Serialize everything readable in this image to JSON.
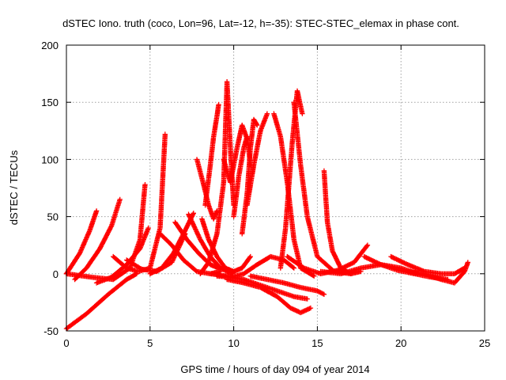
{
  "chart_data": {
    "type": "scatter",
    "title": "dSTEC Iono. truth (coco, Lon=96, Lat=-12, h=-35): STEC-STEC_elemax in phase cont.",
    "xlabel": "GPS time / hours of day 094 of year 2014",
    "ylabel": "dSTEC  / TECUs",
    "xlim": [
      0,
      25
    ],
    "ylim": [
      -50,
      200
    ],
    "xticks": [
      0,
      5,
      10,
      15,
      20,
      25
    ],
    "yticks": [
      -50,
      0,
      50,
      100,
      150,
      200
    ],
    "xtick_labels": [
      "0",
      "5",
      "10",
      "15",
      "20",
      "25"
    ],
    "ytick_labels": [
      "-50",
      "0",
      "50",
      "100",
      "150",
      "200"
    ],
    "grid": true,
    "legend": "none",
    "marker": "+",
    "color": "#ff0000",
    "series": [
      {
        "x": [
          0.0,
          0.8,
          1.4,
          1.8
        ],
        "y": [
          0,
          18,
          38,
          55
        ]
      },
      {
        "x": [
          0.0,
          1.2,
          2.5,
          3.6,
          4.2
        ],
        "y": [
          -48,
          -35,
          -18,
          -5,
          0
        ]
      },
      {
        "x": [
          0.5,
          1.2,
          2.0,
          2.7,
          3.2
        ],
        "y": [
          -5,
          5,
          22,
          42,
          65
        ]
      },
      {
        "x": [
          0.0,
          1.5,
          2.8,
          3.8,
          4.4,
          4.7
        ],
        "y": [
          0,
          -3,
          -5,
          5,
          30,
          78
        ]
      },
      {
        "x": [
          1.8,
          2.7,
          3.6,
          4.4,
          4.9
        ],
        "y": [
          -8,
          -3,
          8,
          22,
          40
        ]
      },
      {
        "x": [
          2.8,
          3.6,
          4.3,
          5.0,
          5.6,
          5.9
        ],
        "y": [
          15,
          5,
          2,
          5,
          40,
          122
        ]
      },
      {
        "x": [
          3.6,
          4.5,
          5.4,
          6.3,
          7.1
        ],
        "y": [
          12,
          4,
          2,
          10,
          35
        ]
      },
      {
        "x": [
          5.0,
          5.7,
          6.4,
          7.0,
          7.6
        ],
        "y": [
          0,
          5,
          18,
          35,
          53
        ]
      },
      {
        "x": [
          5.6,
          6.3,
          7.0,
          7.8,
          8.6,
          9.2
        ],
        "y": [
          35,
          25,
          12,
          2,
          0,
          2
        ]
      },
      {
        "x": [
          6.5,
          7.2,
          7.9,
          8.6,
          9.1
        ],
        "y": [
          45,
          30,
          18,
          8,
          5
        ]
      },
      {
        "x": [
          7.3,
          8.0,
          8.6,
          9.2,
          9.9
        ],
        "y": [
          52,
          30,
          15,
          5,
          0
        ]
      },
      {
        "x": [
          7.8,
          8.2,
          8.5,
          8.8,
          9.0
        ],
        "y": [
          100,
          78,
          60,
          48,
          55
        ]
      },
      {
        "x": [
          8.0,
          8.5,
          9.0,
          9.4,
          9.6,
          9.8,
          10.0
        ],
        "y": [
          0,
          10,
          35,
          80,
          168,
          110,
          60
        ]
      },
      {
        "x": [
          8.3,
          8.6,
          8.8,
          9.0,
          9.1
        ],
        "y": [
          60,
          95,
          120,
          138,
          148
        ]
      },
      {
        "x": [
          8.1,
          8.5,
          9.0,
          9.5,
          10.0,
          10.5,
          11.0
        ],
        "y": [
          48,
          30,
          15,
          5,
          2,
          5,
          15
        ]
      },
      {
        "x": [
          9.4,
          9.8,
          10.2,
          10.5,
          10.8
        ],
        "y": [
          100,
          80,
          110,
          130,
          118
        ]
      },
      {
        "x": [
          10.0,
          10.3,
          10.6,
          10.8,
          11.0
        ],
        "y": [
          50,
          85,
          110,
          120,
          95
        ]
      },
      {
        "x": [
          10.5,
          10.8,
          11.0,
          11.2,
          11.4
        ],
        "y": [
          35,
          70,
          110,
          135,
          130
        ]
      },
      {
        "x": [
          10.8,
          11.2,
          11.6,
          12.0
        ],
        "y": [
          60,
          95,
          125,
          140
        ]
      },
      {
        "x": [
          9.0,
          9.8,
          10.6,
          11.4,
          12.2,
          13.0,
          13.6
        ],
        "y": [
          -2,
          -3,
          0,
          8,
          15,
          12,
          5
        ]
      },
      {
        "x": [
          8.6,
          9.6,
          10.6,
          11.6,
          12.6,
          13.6,
          14.4
        ],
        "y": [
          0,
          -2,
          -5,
          -10,
          -15,
          -20,
          -22
        ]
      },
      {
        "x": [
          9.6,
          10.6,
          11.6,
          12.6,
          13.4,
          14.0,
          14.6
        ],
        "y": [
          -5,
          -8,
          -12,
          -20,
          -30,
          -34,
          -30
        ]
      },
      {
        "x": [
          11.0,
          12.0,
          13.0,
          14.0,
          15.0,
          15.4
        ],
        "y": [
          -2,
          -5,
          -8,
          -12,
          -15,
          -18
        ]
      },
      {
        "x": [
          12.4,
          12.8,
          13.2,
          13.6,
          14.0,
          14.8
        ],
        "y": [
          140,
          120,
          80,
          30,
          5,
          -2
        ]
      },
      {
        "x": [
          12.8,
          13.1,
          13.5,
          13.8,
          14.1
        ],
        "y": [
          5,
          40,
          115,
          160,
          140
        ]
      },
      {
        "x": [
          13.6,
          14.0,
          14.4,
          15.0,
          16.0,
          17.0
        ],
        "y": [
          150,
          95,
          50,
          15,
          2,
          0
        ]
      },
      {
        "x": [
          15.4,
          15.6,
          15.9,
          16.4,
          17.0,
          17.6
        ],
        "y": [
          90,
          45,
          20,
          5,
          0,
          2
        ]
      },
      {
        "x": [
          13.2,
          14.2,
          15.2,
          16.2,
          17.2,
          18.0
        ],
        "y": [
          15,
          5,
          0,
          3,
          10,
          25
        ]
      },
      {
        "x": [
          15.2,
          16.4,
          17.6,
          18.8,
          20.0,
          21.0
        ],
        "y": [
          2,
          0,
          5,
          8,
          5,
          0
        ]
      },
      {
        "x": [
          17.8,
          18.8,
          19.8,
          20.8,
          21.8,
          22.8
        ],
        "y": [
          15,
          8,
          3,
          0,
          -3,
          -5
        ]
      },
      {
        "x": [
          19.4,
          20.4,
          21.4,
          22.4,
          23.2,
          23.8
        ],
        "y": [
          15,
          8,
          2,
          0,
          0,
          5
        ]
      },
      {
        "x": [
          20.4,
          21.4,
          22.4,
          23.2,
          23.8,
          24.0
        ],
        "y": [
          2,
          0,
          -5,
          -8,
          2,
          10
        ]
      }
    ]
  }
}
